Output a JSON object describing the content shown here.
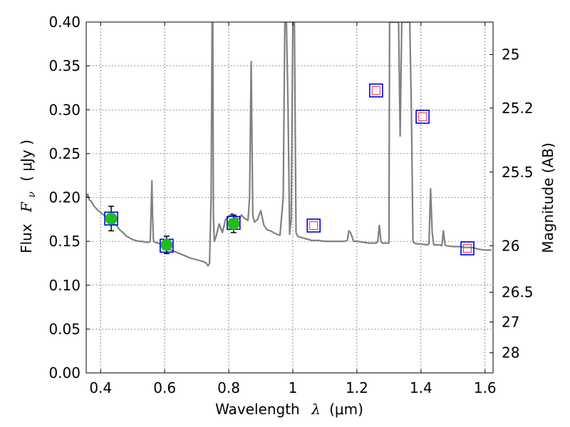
{
  "chart_data": {
    "type": "line",
    "xlabel": "Wavelength",
    "xlabel_symbol": "λ",
    "xlabel_unit": "(μm)",
    "ylabel": "Flux",
    "ylabel_symbol": "F",
    "ylabel_subscript": "ν",
    "ylabel_unit": "( μJy )",
    "y2label": "Magnitude (AB)",
    "xlim": [
      0.355,
      1.625
    ],
    "ylim": [
      0.0,
      0.4
    ],
    "xticks": [
      0.4,
      0.6,
      0.8,
      1,
      1.2,
      1.4,
      1.6
    ],
    "xtick_labels": [
      "0.4",
      "0.6",
      "0.8",
      "1",
      "1.2",
      "1.4",
      "1.6"
    ],
    "yticks": [
      0.0,
      0.05,
      0.1,
      0.15,
      0.2,
      0.25,
      0.3,
      0.35,
      0.4
    ],
    "ytick_labels": [
      "0.00",
      "0.05",
      "0.10",
      "0.15",
      "0.20",
      "0.25",
      "0.30",
      "0.35",
      "0.40"
    ],
    "y2ticks": [
      {
        "label": "25",
        "flux": 0.363
      },
      {
        "label": "25.2",
        "flux": 0.302
      },
      {
        "label": "25.5",
        "flux": 0.229
      },
      {
        "label": "26",
        "flux": 0.145
      },
      {
        "label": "26.5",
        "flux": 0.092
      },
      {
        "label": "27",
        "flux": 0.058
      },
      {
        "label": "28",
        "flux": 0.023
      }
    ],
    "grid": true,
    "colors": {
      "spectrum": "#808080",
      "observed_fill": "#22bb22",
      "errorbar": "#000000",
      "model_box_outer": "#0000ee",
      "model_box_inner": "#ee3333"
    },
    "spectrum": {
      "x": [
        0.355,
        0.36,
        0.365,
        0.37,
        0.38,
        0.39,
        0.4,
        0.41,
        0.42,
        0.43,
        0.44,
        0.45,
        0.46,
        0.47,
        0.48,
        0.49,
        0.5,
        0.51,
        0.52,
        0.53,
        0.54,
        0.55,
        0.555,
        0.56,
        0.562,
        0.565,
        0.57,
        0.58,
        0.59,
        0.6,
        0.62,
        0.64,
        0.66,
        0.68,
        0.7,
        0.72,
        0.73,
        0.735,
        0.74,
        0.745,
        0.748,
        0.75,
        0.752,
        0.755,
        0.76,
        0.77,
        0.78,
        0.79,
        0.8,
        0.81,
        0.82,
        0.83,
        0.84,
        0.85,
        0.86,
        0.865,
        0.87,
        0.875,
        0.88,
        0.89,
        0.9,
        0.91,
        0.92,
        0.93,
        0.94,
        0.95,
        0.96,
        0.97,
        0.975,
        0.98,
        0.985,
        0.99,
        0.995,
        1.0,
        1.005,
        1.01,
        1.015,
        1.02,
        1.03,
        1.04,
        1.05,
        1.06,
        1.08,
        1.1,
        1.12,
        1.14,
        1.16,
        1.17,
        1.175,
        1.18,
        1.19,
        1.2,
        1.22,
        1.24,
        1.26,
        1.265,
        1.27,
        1.275,
        1.28,
        1.29,
        1.3,
        1.302,
        1.305,
        1.31,
        1.32,
        1.33,
        1.335,
        1.34,
        1.35,
        1.36,
        1.365,
        1.37,
        1.375,
        1.38,
        1.39,
        1.4,
        1.42,
        1.425,
        1.43,
        1.435,
        1.44,
        1.45,
        1.46,
        1.465,
        1.47,
        1.475,
        1.48,
        1.5,
        1.52,
        1.54,
        1.56,
        1.58,
        1.6,
        1.62
      ],
      "y": [
        0.2,
        0.204,
        0.197,
        0.196,
        0.19,
        0.186,
        0.183,
        0.18,
        0.176,
        0.172,
        0.17,
        0.168,
        0.163,
        0.16,
        0.156,
        0.154,
        0.152,
        0.151,
        0.15,
        0.15,
        0.149,
        0.149,
        0.15,
        0.219,
        0.18,
        0.15,
        0.149,
        0.148,
        0.146,
        0.145,
        0.14,
        0.137,
        0.134,
        0.131,
        0.129,
        0.127,
        0.125,
        0.122,
        0.125,
        0.2,
        0.4,
        0.4,
        0.18,
        0.15,
        0.155,
        0.17,
        0.16,
        0.175,
        0.178,
        0.182,
        0.178,
        0.175,
        0.18,
        0.176,
        0.174,
        0.2,
        0.355,
        0.18,
        0.172,
        0.175,
        0.185,
        0.168,
        0.163,
        0.162,
        0.16,
        0.158,
        0.157,
        0.2,
        0.4,
        0.4,
        0.3,
        0.158,
        0.175,
        0.4,
        0.4,
        0.16,
        0.156,
        0.155,
        0.154,
        0.153,
        0.152,
        0.151,
        0.151,
        0.15,
        0.15,
        0.15,
        0.15,
        0.151,
        0.162,
        0.16,
        0.15,
        0.15,
        0.149,
        0.148,
        0.148,
        0.15,
        0.168,
        0.15,
        0.148,
        0.148,
        0.148,
        0.4,
        0.4,
        0.4,
        0.4,
        0.4,
        0.27,
        0.4,
        0.4,
        0.4,
        0.4,
        0.3,
        0.15,
        0.148,
        0.147,
        0.147,
        0.146,
        0.147,
        0.21,
        0.16,
        0.146,
        0.146,
        0.146,
        0.145,
        0.162,
        0.146,
        0.145,
        0.144,
        0.144,
        0.143,
        0.143,
        0.141,
        0.14,
        0.14
      ]
    },
    "observed_points": [
      {
        "x": 0.433,
        "y": 0.176,
        "err": 0.014
      },
      {
        "x": 0.606,
        "y": 0.146,
        "err": 0.01
      },
      {
        "x": 0.815,
        "y": 0.17,
        "err": 0.01
      }
    ],
    "model_points": [
      {
        "x": 0.433,
        "y": 0.176
      },
      {
        "x": 0.606,
        "y": 0.145
      },
      {
        "x": 0.815,
        "y": 0.171
      },
      {
        "x": 1.065,
        "y": 0.168
      },
      {
        "x": 1.26,
        "y": 0.322
      },
      {
        "x": 1.405,
        "y": 0.292
      },
      {
        "x": 1.545,
        "y": 0.142
      }
    ]
  }
}
